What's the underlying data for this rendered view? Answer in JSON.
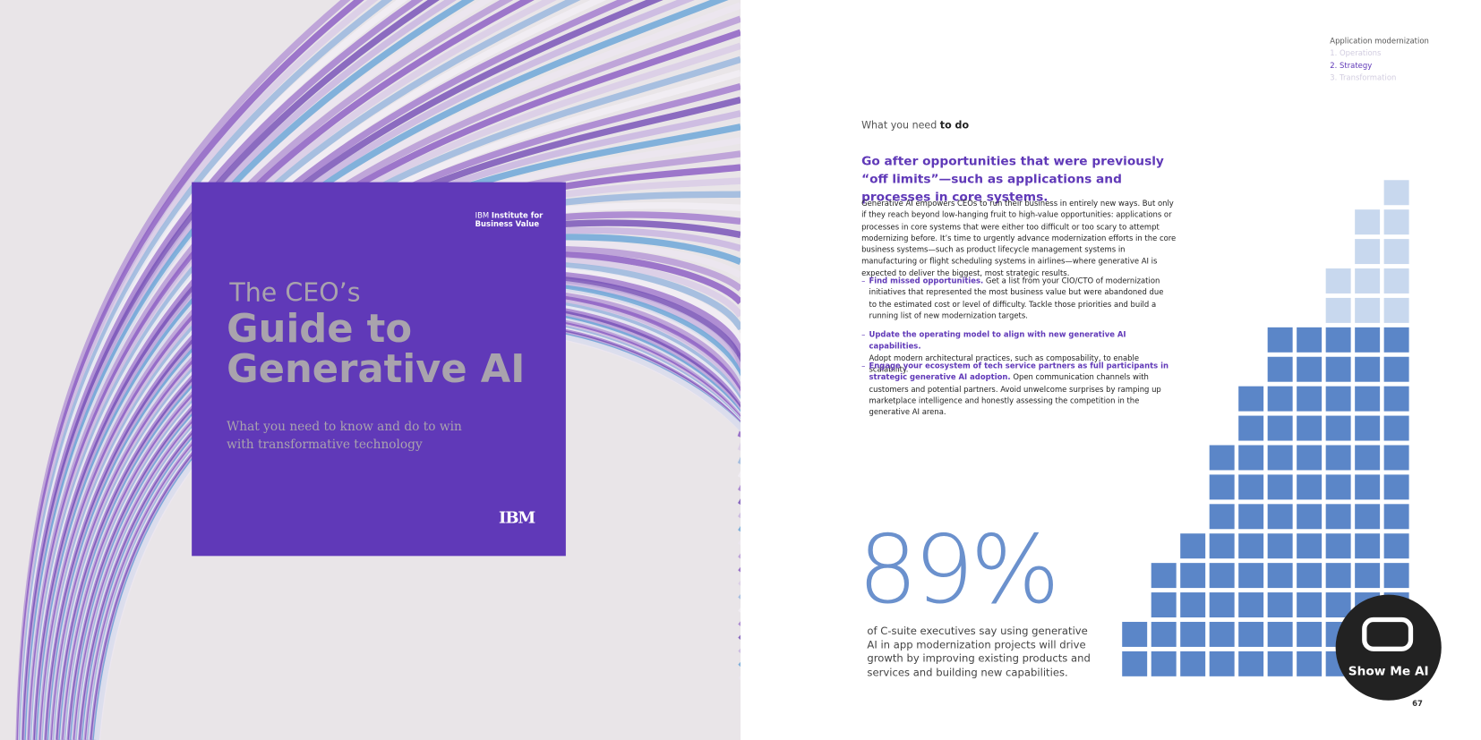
{
  "cover": {
    "brand_prefix": "IBM",
    "brand_name": "Institute for Business Value",
    "title_small": "The CEO’s",
    "title_large": "Guide to Generative AI",
    "subtitle": "What you need to know and do to win with transformative technology",
    "logo": "IBM"
  },
  "nav": {
    "section": "Application modernization",
    "items": [
      "1. Operations",
      "2. Strategy",
      "3. Transformation"
    ]
  },
  "kicker": {
    "lead": "What you need",
    "bold": "to do"
  },
  "headline": "Go after opportunities that were previously “off limits”—such as applications and processes in core systems.",
  "body": "Generative AI empowers CEOs to run their business in entirely new ways. But only if they reach beyond low-hanging fruit to high-value opportunities: applications or processes in core systems that were either too difficult or too scary to attempt modernizing before. It’s time to urgently advance modernization efforts in the core business systems—such as product lifecycle management systems in manufacturing or flight scheduling systems in airlines—where generative AI is expected to deliver the biggest, most strategic results.",
  "bullets": [
    {
      "lead": "Find missed opportunities.",
      "text": "Get a list from your CIO/CTO of modernization initiatives that represented the most business value but were abandoned due to the estimated cost or level of difficulty. Tackle those priorities and build a running list of new modernization targets."
    },
    {
      "lead": "Update the operating model to align with new generative AI capabilities.",
      "text": "Adopt modern architectural practices, such as composability, to enable scalability."
    },
    {
      "lead": "Engage your ecosystem of tech service partners as full participants in strategic generative AI adoption.",
      "text": "Open communication channels with customers and potential partners. Avoid unwelcome surprises by ramping up marketplace intelligence and honestly assessing the competition in the generative AI arena."
    }
  ],
  "stat": {
    "value": "89%",
    "caption": "of C-suite executives say using generative AI in app modernization projects will drive growth by improving existing products and services and building new capabilities."
  },
  "page_number": "67",
  "watermark": "Show Me AI"
}
